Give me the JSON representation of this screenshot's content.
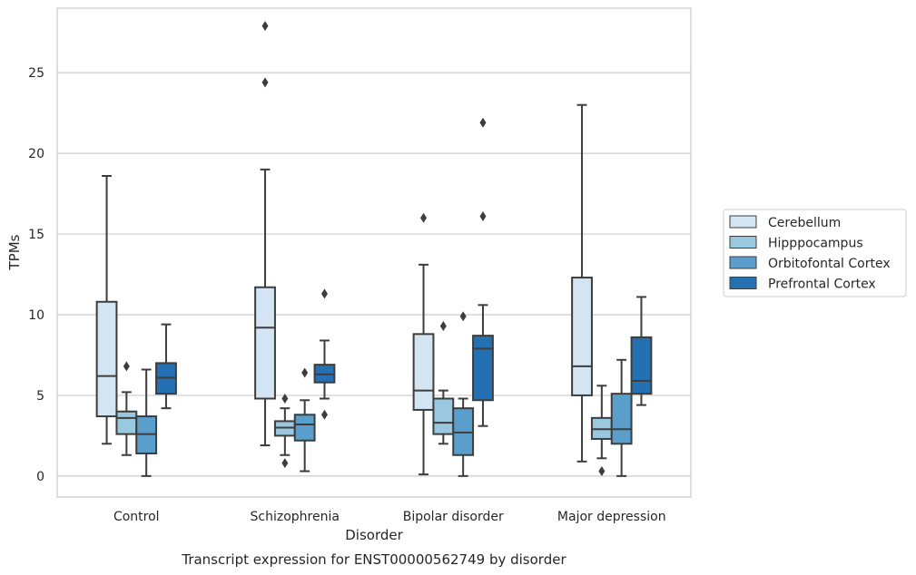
{
  "chart_data": {
    "type": "box",
    "caption": "Transcript expression for ENST00000562749 by disorder",
    "xlabel": "Disorder",
    "ylabel": "TPMs",
    "ylim": [
      -1.3,
      29.0
    ],
    "yticks": [
      0,
      5,
      10,
      15,
      20,
      25
    ],
    "grid": "horizontal",
    "legend_position": "right",
    "categories": [
      "Control",
      "Schizophrenia",
      "Bipolar disorder",
      "Major depression"
    ],
    "series": [
      {
        "name": "Cerebellum",
        "color": "#d3e4f3",
        "boxes": [
          {
            "whislo": 2.0,
            "q1": 3.7,
            "med": 6.2,
            "q3": 10.8,
            "whishi": 18.6,
            "fliers": []
          },
          {
            "whislo": 1.9,
            "q1": 4.8,
            "med": 9.2,
            "q3": 11.7,
            "whishi": 19.0,
            "fliers": [
              24.4,
              27.9
            ]
          },
          {
            "whislo": 0.1,
            "q1": 4.1,
            "med": 5.3,
            "q3": 8.8,
            "whishi": 13.1,
            "fliers": [
              16.0
            ]
          },
          {
            "whislo": 0.9,
            "q1": 5.0,
            "med": 6.8,
            "q3": 12.3,
            "whishi": 23.0,
            "fliers": []
          }
        ]
      },
      {
        "name": "Hipppocampus",
        "color": "#9ac8e0",
        "boxes": [
          {
            "whislo": 1.3,
            "q1": 2.6,
            "med": 3.6,
            "q3": 4.0,
            "whishi": 5.2,
            "fliers": [
              6.8
            ]
          },
          {
            "whislo": 1.3,
            "q1": 2.5,
            "med": 3.0,
            "q3": 3.4,
            "whishi": 4.2,
            "fliers": [
              0.8,
              4.8
            ]
          },
          {
            "whislo": 2.0,
            "q1": 2.6,
            "med": 3.3,
            "q3": 4.8,
            "whishi": 5.3,
            "fliers": [
              9.3
            ]
          },
          {
            "whislo": 1.1,
            "q1": 2.3,
            "med": 2.9,
            "q3": 3.6,
            "whishi": 5.6,
            "fliers": [
              0.3
            ]
          }
        ]
      },
      {
        "name": "Orbitofontal Cortex",
        "color": "#5a9ecb",
        "boxes": [
          {
            "whislo": 0.0,
            "q1": 1.4,
            "med": 2.6,
            "q3": 3.7,
            "whishi": 6.6,
            "fliers": []
          },
          {
            "whislo": 0.3,
            "q1": 2.2,
            "med": 3.2,
            "q3": 3.8,
            "whishi": 4.7,
            "fliers": [
              6.4
            ]
          },
          {
            "whislo": 0.0,
            "q1": 1.3,
            "med": 2.7,
            "q3": 4.2,
            "whishi": 4.8,
            "fliers": [
              9.9
            ]
          },
          {
            "whislo": 0.0,
            "q1": 2.0,
            "med": 2.9,
            "q3": 5.1,
            "whishi": 7.2,
            "fliers": []
          }
        ]
      },
      {
        "name": "Prefrontal Cortex",
        "color": "#2570b2",
        "boxes": [
          {
            "whislo": 4.2,
            "q1": 5.1,
            "med": 6.1,
            "q3": 7.0,
            "whishi": 9.4,
            "fliers": []
          },
          {
            "whislo": 4.8,
            "q1": 5.8,
            "med": 6.3,
            "q3": 6.9,
            "whishi": 8.4,
            "fliers": [
              3.8,
              11.3
            ]
          },
          {
            "whislo": 3.1,
            "q1": 4.7,
            "med": 7.9,
            "q3": 8.7,
            "whishi": 10.6,
            "fliers": [
              16.1,
              21.9
            ]
          },
          {
            "whislo": 4.4,
            "q1": 5.1,
            "med": 5.9,
            "q3": 8.6,
            "whishi": 11.1,
            "fliers": []
          }
        ]
      }
    ]
  }
}
